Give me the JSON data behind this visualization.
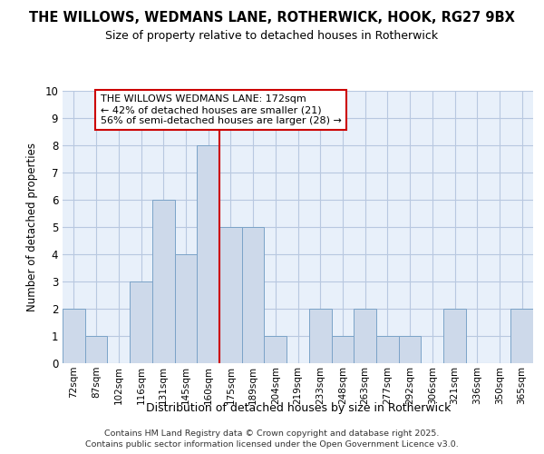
{
  "title": "THE WILLOWS, WEDMANS LANE, ROTHERWICK, HOOK, RG27 9BX",
  "subtitle": "Size of property relative to detached houses in Rotherwick",
  "xlabel": "Distribution of detached houses by size in Rotherwick",
  "ylabel": "Number of detached properties",
  "categories": [
    "72sqm",
    "87sqm",
    "102sqm",
    "116sqm",
    "131sqm",
    "145sqm",
    "160sqm",
    "175sqm",
    "189sqm",
    "204sqm",
    "219sqm",
    "233sqm",
    "248sqm",
    "263sqm",
    "277sqm",
    "292sqm",
    "306sqm",
    "321sqm",
    "336sqm",
    "350sqm",
    "365sqm"
  ],
  "values": [
    2,
    1,
    0,
    3,
    6,
    4,
    8,
    5,
    5,
    1,
    0,
    2,
    1,
    2,
    1,
    1,
    0,
    2,
    0,
    0,
    2
  ],
  "bar_color": "#cdd9ea",
  "bar_edge_color": "#7ba3c8",
  "vline_color": "#cc0000",
  "vline_position": 6.5,
  "grid_color": "#b8c8e0",
  "background_color": "#dce8f8",
  "plot_bg_color": "#e8f0fa",
  "annotation_text": "THE WILLOWS WEDMANS LANE: 172sqm\n← 42% of detached houses are smaller (21)\n56% of semi-detached houses are larger (28) →",
  "annotation_box_facecolor": "#ffffff",
  "annotation_box_edgecolor": "#cc0000",
  "footer_line1": "Contains HM Land Registry data © Crown copyright and database right 2025.",
  "footer_line2": "Contains public sector information licensed under the Open Government Licence v3.0.",
  "ylim": [
    0,
    10
  ],
  "yticks": [
    0,
    1,
    2,
    3,
    4,
    5,
    6,
    7,
    8,
    9,
    10
  ]
}
